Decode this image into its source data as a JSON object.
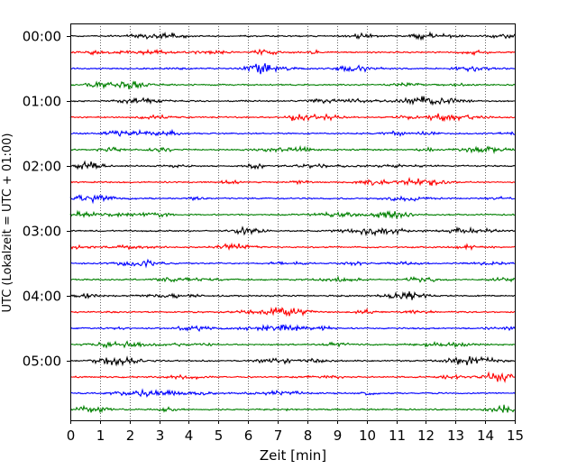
{
  "chart_data": {
    "type": "line",
    "title": "",
    "xlabel": "Zeit  [min]",
    "ylabel": "UTC (Lokalzeit = UTC + 01:00)",
    "xlim": [
      0,
      15
    ],
    "xticks": [
      0,
      1,
      2,
      3,
      4,
      5,
      6,
      7,
      8,
      9,
      10,
      11,
      12,
      13,
      14,
      15
    ],
    "xtick_labels": [
      "0",
      "1",
      "2",
      "3",
      "4",
      "5",
      "6",
      "7",
      "8",
      "9",
      "10",
      "11",
      "12",
      "13",
      "14",
      "15"
    ],
    "yticks": [
      "00:00",
      "01:00",
      "02:00",
      "03:00",
      "04:00",
      "05:00"
    ],
    "grid": "vertical-dotted",
    "trace_count": 24,
    "trace_minutes": 15,
    "color_cycle": [
      "#000000",
      "#ff0000",
      "#0000ff",
      "#008000"
    ]
  }
}
